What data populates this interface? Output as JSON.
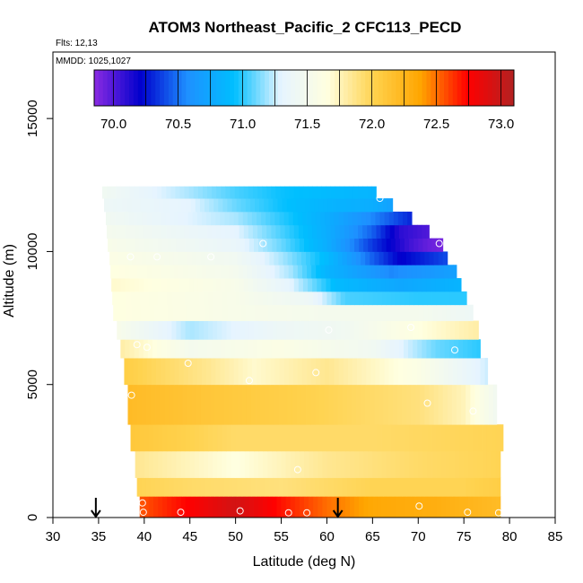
{
  "chart_data": {
    "type": "heatmap",
    "title": "ATOM3 Northeast_Pacific_2 CFC113_PECD",
    "flights_label": "Flts: 12,13",
    "mmdd_label": "MMDD: 1025,1027",
    "xlabel": "Latitude (deg N)",
    "ylabel": "Altitude (m)",
    "xlim": [
      30,
      85
    ],
    "ylim": [
      0,
      17500
    ],
    "x_ticks": [
      30,
      35,
      40,
      45,
      50,
      55,
      60,
      65,
      70,
      75,
      80,
      85
    ],
    "y_ticks": [
      0,
      5000,
      10000,
      15000
    ],
    "colorbar": {
      "range": [
        69.85,
        73.1
      ],
      "ticks": [
        70.0,
        70.5,
        71.0,
        71.5,
        72.0,
        72.5,
        73.0
      ],
      "colors": [
        "#8a2be2",
        "#0000cd",
        "#1e90ff",
        "#00bfff",
        "#e6f4ff",
        "#ffffe0",
        "#ffd24d",
        "#ffa500",
        "#ff0000",
        "#b22222"
      ]
    },
    "arrows_latitude": [
      34.7,
      61.2
    ],
    "altitude_bands": [
      {
        "alt": [
          0,
          800
        ],
        "lat": [
          39.5,
          79
        ],
        "knots": [
          [
            39.5,
            72.55
          ],
          [
            45,
            72.75
          ],
          [
            50,
            72.95
          ],
          [
            55,
            72.7
          ],
          [
            60,
            72.5
          ],
          [
            65,
            72.35
          ],
          [
            72,
            72.3
          ],
          [
            79,
            72.2
          ]
        ]
      },
      {
        "alt": [
          800,
          1500
        ],
        "lat": [
          39.2,
          79
        ],
        "knots": [
          [
            39.2,
            72.0
          ],
          [
            45,
            71.95
          ],
          [
            55,
            71.9
          ],
          [
            65,
            72.0
          ],
          [
            75,
            72.0
          ],
          [
            79,
            72.05
          ]
        ]
      },
      {
        "alt": [
          1500,
          2500
        ],
        "lat": [
          39,
          79
        ],
        "knots": [
          [
            39,
            71.85
          ],
          [
            50,
            71.65
          ],
          [
            60,
            71.85
          ],
          [
            70,
            71.95
          ],
          [
            79,
            72.0
          ]
        ]
      },
      {
        "alt": [
          2500,
          3500
        ],
        "lat": [
          38.5,
          79.3
        ],
        "knots": [
          [
            38.5,
            72.1
          ],
          [
            50,
            71.95
          ],
          [
            65,
            71.95
          ],
          [
            79.3,
            72.0
          ]
        ]
      },
      {
        "alt": [
          3500,
          5000
        ],
        "lat": [
          38.2,
          78.6
        ],
        "knots": [
          [
            38.2,
            72.2
          ],
          [
            48,
            72.1
          ],
          [
            60,
            72.0
          ],
          [
            70,
            71.9
          ],
          [
            75,
            71.75
          ],
          [
            78.6,
            71.45
          ]
        ]
      },
      {
        "alt": [
          5000,
          6000
        ],
        "lat": [
          37.8,
          77.6
        ],
        "knots": [
          [
            37.8,
            72.05
          ],
          [
            47,
            71.85
          ],
          [
            52,
            71.7
          ],
          [
            60,
            71.85
          ],
          [
            70,
            71.6
          ],
          [
            77.6,
            71.25
          ]
        ]
      },
      {
        "alt": [
          6000,
          6700
        ],
        "lat": [
          37.4,
          76.8
        ],
        "knots": [
          [
            37.4,
            71.8
          ],
          [
            45,
            71.5
          ],
          [
            55,
            71.6
          ],
          [
            65,
            71.45
          ],
          [
            72,
            71.1
          ],
          [
            76.8,
            71.0
          ]
        ]
      },
      {
        "alt": [
          6700,
          7400
        ],
        "lat": [
          37,
          76.6
        ],
        "knots": [
          [
            37,
            71.55
          ],
          [
            45,
            71.2
          ],
          [
            55,
            71.4
          ],
          [
            62,
            71.45
          ],
          [
            70,
            71.65
          ],
          [
            76.6,
            71.8
          ]
        ]
      },
      {
        "alt": [
          7400,
          8000
        ],
        "lat": [
          36.6,
          76
        ],
        "knots": [
          [
            36.6,
            71.65
          ],
          [
            50,
            71.55
          ],
          [
            60,
            71.5
          ],
          [
            70,
            71.5
          ],
          [
            76,
            71.4
          ]
        ]
      },
      {
        "alt": [
          8000,
          8500
        ],
        "lat": [
          36.5,
          75.3
        ],
        "knots": [
          [
            36.5,
            71.65
          ],
          [
            50,
            71.55
          ],
          [
            58,
            71.4
          ],
          [
            62,
            71.05
          ],
          [
            70,
            71.0
          ],
          [
            75.3,
            71.0
          ]
        ]
      },
      {
        "alt": [
          8500,
          9000
        ],
        "lat": [
          36.4,
          74.7
        ],
        "knots": [
          [
            36.4,
            71.7
          ],
          [
            50,
            71.55
          ],
          [
            56,
            71.3
          ],
          [
            61,
            70.9
          ],
          [
            68,
            70.75
          ],
          [
            74.7,
            70.85
          ]
        ]
      },
      {
        "alt": [
          9000,
          9500
        ],
        "lat": [
          36.3,
          74.2
        ],
        "knots": [
          [
            36.3,
            71.65
          ],
          [
            50,
            71.5
          ],
          [
            56,
            71.2
          ],
          [
            60,
            70.85
          ],
          [
            67,
            70.55
          ],
          [
            74.2,
            70.7
          ]
        ]
      },
      {
        "alt": [
          9500,
          10000
        ],
        "lat": [
          36.2,
          73.2
        ],
        "knots": [
          [
            36.2,
            71.6
          ],
          [
            50,
            71.45
          ],
          [
            55,
            71.2
          ],
          [
            60,
            70.9
          ],
          [
            65,
            70.45
          ],
          [
            68,
            70.2
          ],
          [
            73.2,
            70.4
          ]
        ]
      },
      {
        "alt": [
          10000,
          10500
        ],
        "lat": [
          36,
          72.7
        ],
        "knots": [
          [
            36,
            71.55
          ],
          [
            50,
            71.35
          ],
          [
            55,
            71.1
          ],
          [
            60,
            70.8
          ],
          [
            65,
            70.35
          ],
          [
            69,
            70.05
          ],
          [
            71,
            69.95
          ],
          [
            72.7,
            69.9
          ]
        ]
      },
      {
        "alt": [
          10500,
          11000
        ],
        "lat": [
          35.9,
          71.2
        ],
        "knots": [
          [
            35.9,
            71.5
          ],
          [
            50,
            71.3
          ],
          [
            55,
            71.05
          ],
          [
            60,
            70.8
          ],
          [
            65,
            70.45
          ],
          [
            68,
            70.1
          ],
          [
            71.2,
            70.0
          ]
        ]
      },
      {
        "alt": [
          11000,
          11500
        ],
        "lat": [
          35.8,
          69.3
        ],
        "knots": [
          [
            35.8,
            71.45
          ],
          [
            50,
            71.2
          ],
          [
            55,
            71.0
          ],
          [
            60,
            70.8
          ],
          [
            65,
            70.55
          ],
          [
            69.3,
            70.3
          ]
        ]
      },
      {
        "alt": [
          11500,
          12000
        ],
        "lat": [
          35.6,
          67.2
        ],
        "knots": [
          [
            35.6,
            71.4
          ],
          [
            45,
            71.3
          ],
          [
            50,
            71.1
          ],
          [
            55,
            70.95
          ],
          [
            60,
            70.85
          ],
          [
            65,
            70.8
          ],
          [
            67.2,
            70.7
          ]
        ]
      },
      {
        "alt": [
          12000,
          12450
        ],
        "lat": [
          35.4,
          65.4
        ],
        "knots": [
          [
            35.4,
            71.45
          ],
          [
            45,
            71.2
          ],
          [
            50,
            71.05
          ],
          [
            55,
            70.95
          ],
          [
            60,
            70.9
          ],
          [
            65.4,
            70.85
          ]
        ]
      }
    ],
    "sample_points": [
      [
        39.9,
        200
      ],
      [
        39.8,
        550
      ],
      [
        44,
        200
      ],
      [
        50.5,
        250
      ],
      [
        55.8,
        180
      ],
      [
        57.8,
        180
      ],
      [
        70.1,
        430
      ],
      [
        75.4,
        200
      ],
      [
        78.8,
        180
      ],
      [
        56.8,
        1800
      ],
      [
        38.6,
        4600
      ],
      [
        51.5,
        5150
      ],
      [
        58.8,
        5450
      ],
      [
        44.8,
        5800
      ],
      [
        39.2,
        6500
      ],
      [
        40.3,
        6400
      ],
      [
        71,
        4300
      ],
      [
        76,
        4000
      ],
      [
        74,
        6300
      ],
      [
        60.2,
        7050
      ],
      [
        69.2,
        7150
      ],
      [
        38.5,
        9800
      ],
      [
        41.4,
        9800
      ],
      [
        47.3,
        9800
      ],
      [
        53,
        10300
      ],
      [
        72.3,
        10300
      ],
      [
        65.8,
        12000
      ]
    ]
  }
}
